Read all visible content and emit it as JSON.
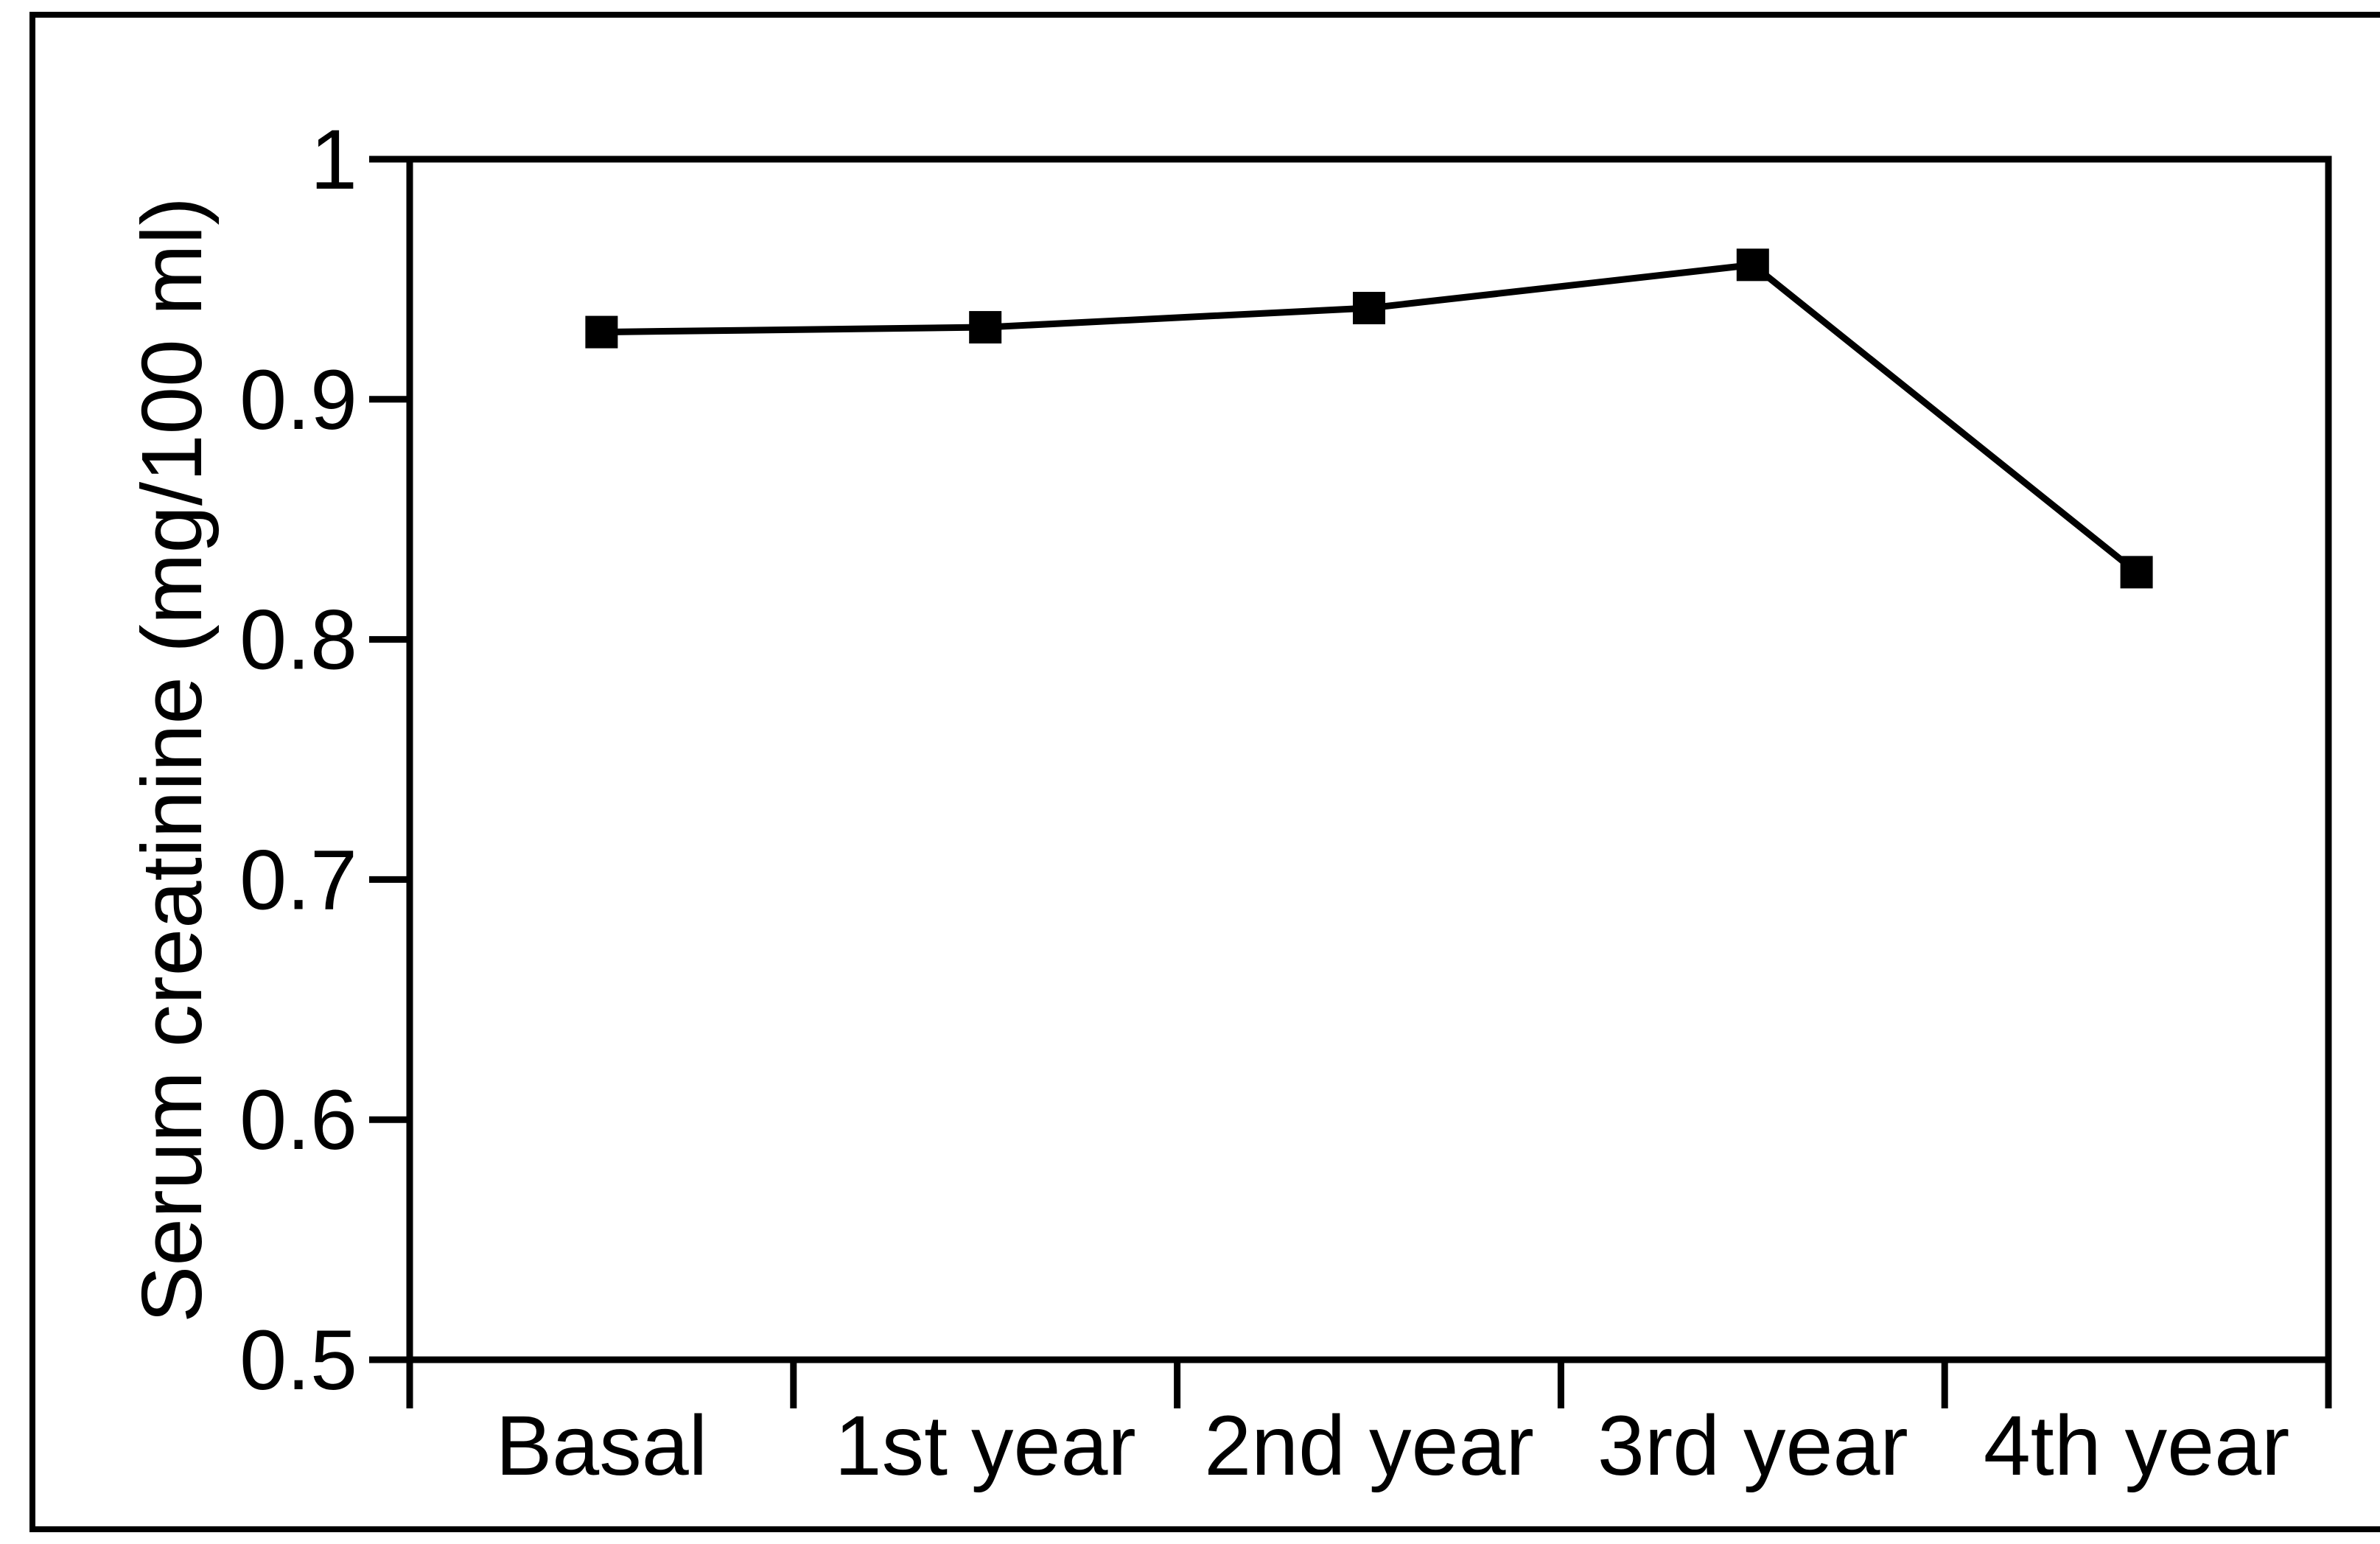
{
  "figure": {
    "background": "#ffffff",
    "frame_color": "#000000",
    "ink_color": "#000000"
  },
  "chart_data": {
    "type": "line",
    "title": "",
    "categories": [
      "Basal",
      "1st year",
      "2nd year",
      "3rd year",
      "4th year"
    ],
    "series": [
      {
        "name": "Serum creatinine",
        "values": [
          0.928,
          0.93,
          0.938,
          0.956,
          0.828
        ],
        "marker": "filled-square",
        "color": "#000000"
      }
    ],
    "xlabel": "",
    "ylabel": "Serum creatinine (mg/100 ml)",
    "ylim": [
      0.5,
      1.0
    ],
    "yticks": [
      1,
      0.9,
      0.8,
      0.7,
      0.6,
      0.5
    ],
    "ytick_labels": [
      "1",
      "0.9",
      "0.8",
      "0.7",
      "0.6",
      "0.5"
    ],
    "grid": false,
    "legend": false,
    "plot_frame": true,
    "category_divider_ticks": true
  }
}
